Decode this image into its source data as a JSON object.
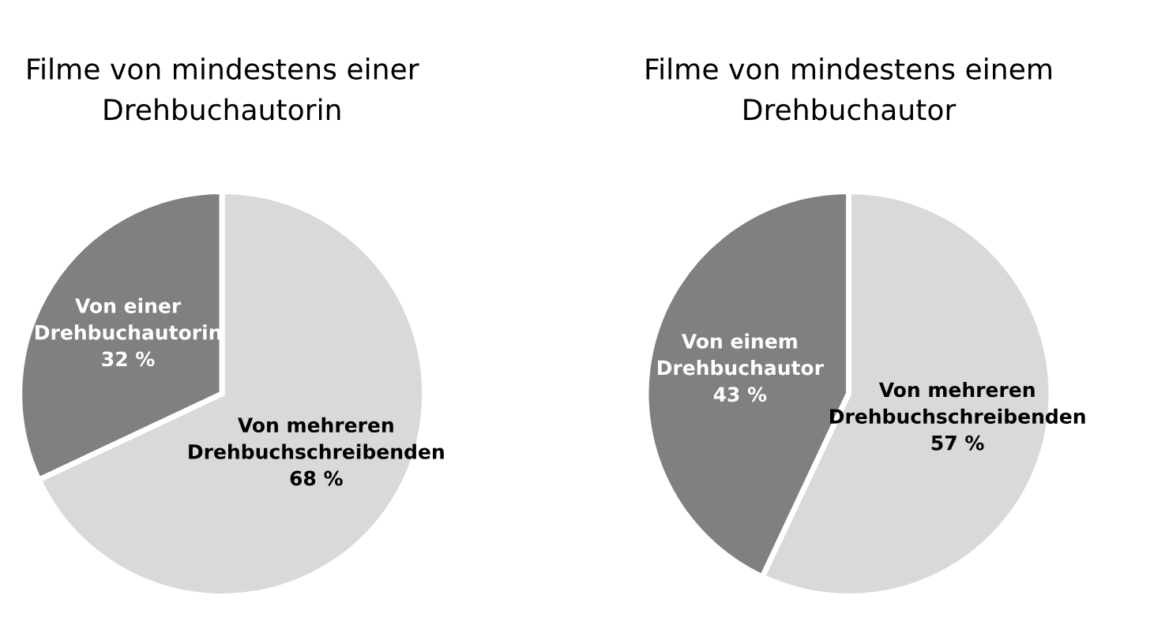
{
  "chart_data": [
    {
      "type": "pie",
      "title": "Filme von mindestens einer\nDrehbuchautorin",
      "categories": [
        "Von einer\nDrehbuchautorin",
        "Von mehreren\nDrehbuchschreibenden"
      ],
      "values": [
        32,
        68
      ],
      "value_labels": [
        "32 %",
        "68 %"
      ],
      "colors": [
        "#808080",
        "#d9d9d9"
      ]
    },
    {
      "type": "pie",
      "title": "Filme von mindestens einem\nDrehbuchautor",
      "categories": [
        "Von einem\nDrehbuchautor",
        "Von mehreren\nDrehbuchschreibenden"
      ],
      "values": [
        43,
        57
      ],
      "value_labels": [
        "43 %",
        "57 %"
      ],
      "colors": [
        "#808080",
        "#d9d9d9"
      ]
    }
  ]
}
